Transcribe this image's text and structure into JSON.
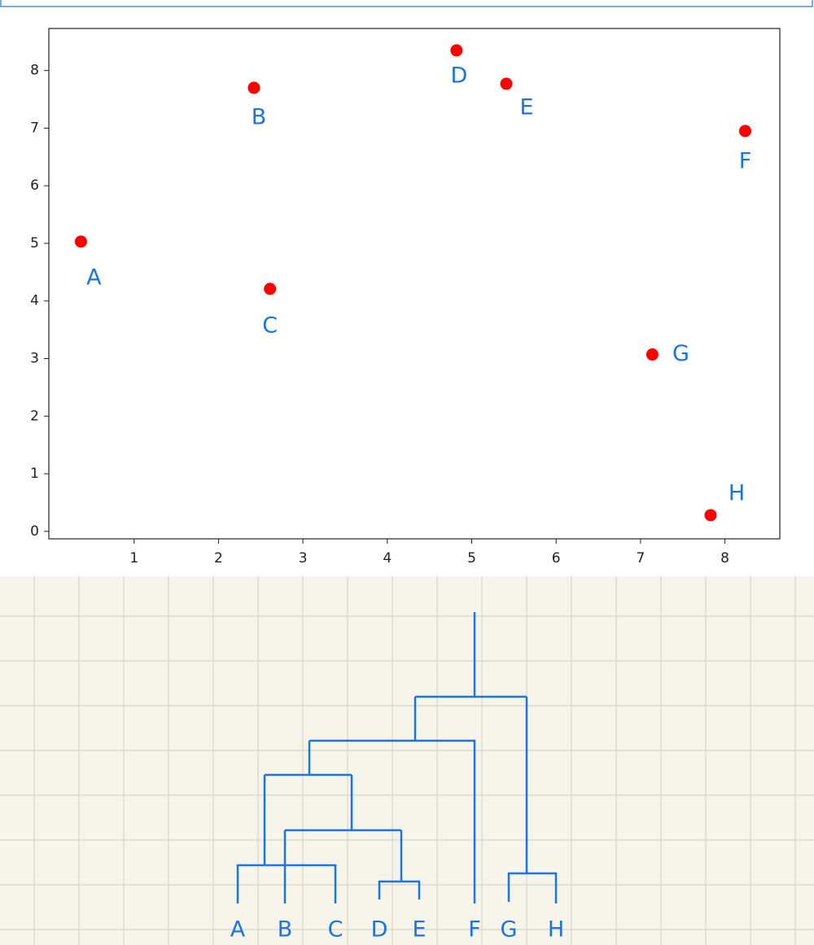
{
  "chart_data": {
    "type": "scatter",
    "color": "#ff0000",
    "label_color": "#1a73e8",
    "labels": [
      "A",
      "B",
      "C",
      "D",
      "E",
      "F",
      "G",
      "H"
    ],
    "x": [
      0.37,
      2.42,
      2.61,
      4.82,
      5.41,
      8.24,
      7.14,
      7.83
    ],
    "values": [
      5.03,
      7.7,
      4.21,
      8.35,
      7.77,
      6.95,
      3.07,
      0.28
    ],
    "xlim": [
      -0.01,
      8.65
    ],
    "ylim": [
      -0.13,
      8.73
    ],
    "xticks": [
      1,
      2,
      3,
      4,
      5,
      6,
      7,
      8
    ],
    "yticks": [
      0,
      1,
      2,
      3,
      4,
      5,
      6,
      7,
      8
    ]
  },
  "dendrogram": {
    "leaves": [
      "A",
      "B",
      "C",
      "D",
      "E",
      "F",
      "G",
      "H"
    ]
  }
}
